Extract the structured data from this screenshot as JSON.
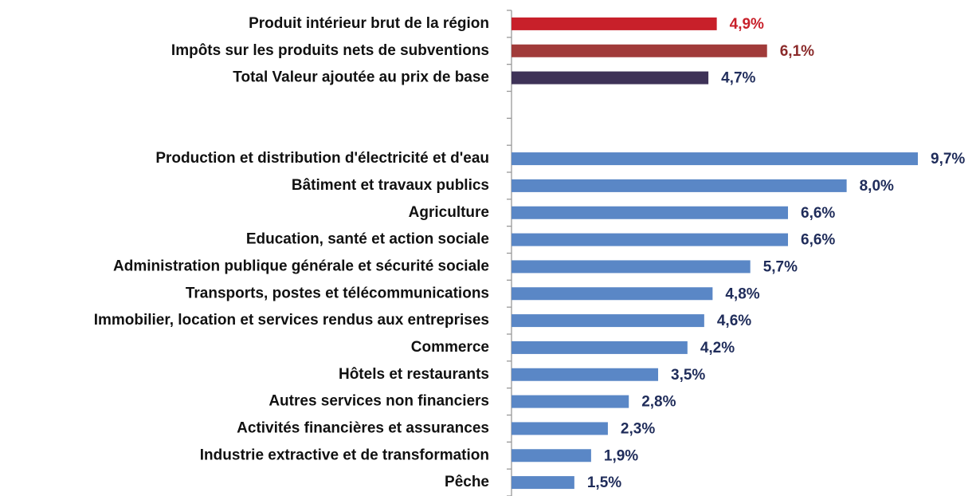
{
  "chart_data": {
    "type": "bar",
    "orientation": "horizontal",
    "categories": [
      "Produit intérieur brut de la région",
      "Impôts sur les produits nets de subventions",
      "Total Valeur ajoutée au prix de base",
      null,
      null,
      "Production et distribution d'électricité et d'eau",
      "Bâtiment et travaux publics",
      "Agriculture",
      "Education, santé et action sociale",
      "Administration publique générale et sécurité sociale",
      "Transports, postes et télécommunications",
      "Immobilier, location et services rendus aux entreprises",
      "Commerce",
      "Hôtels et restaurants",
      "Autres services non financiers",
      "Activités financières et assurances",
      "Industrie extractive et de transformation",
      "Pêche"
    ],
    "values": [
      4.9,
      6.1,
      4.7,
      null,
      null,
      9.7,
      8.0,
      6.6,
      6.6,
      5.7,
      4.8,
      4.6,
      4.2,
      3.5,
      2.8,
      2.3,
      1.9,
      1.5
    ],
    "value_labels": [
      "4,9%",
      "6,1%",
      "4,7%",
      null,
      null,
      "9,7%",
      "8,0%",
      "6,6%",
      "6,6%",
      "5,7%",
      "4,8%",
      "4,6%",
      "4,2%",
      "3,5%",
      "2,8%",
      "2,3%",
      "1,9%",
      "1,5%"
    ],
    "colors": [
      "#c8202a",
      "#a13b3a",
      "#3e3257",
      null,
      null,
      "#5a87c6",
      "#5a87c6",
      "#5a87c6",
      "#5a87c6",
      "#5a87c6",
      "#5a87c6",
      "#5a87c6",
      "#5a87c6",
      "#5a87c6",
      "#5a87c6",
      "#5a87c6",
      "#5a87c6",
      "#5a87c6"
    ],
    "label_colors": [
      "#c8202a",
      "#8b2b2b",
      "#23305e",
      null,
      null,
      "#1f2c5a",
      "#1f2c5a",
      "#1f2c5a",
      "#1f2c5a",
      "#1f2c5a",
      "#1f2c5a",
      "#1f2c5a",
      "#1f2c5a",
      "#1f2c5a",
      "#1f2c5a",
      "#1f2c5a",
      "#1f2c5a",
      "#1f2c5a"
    ]
  }
}
